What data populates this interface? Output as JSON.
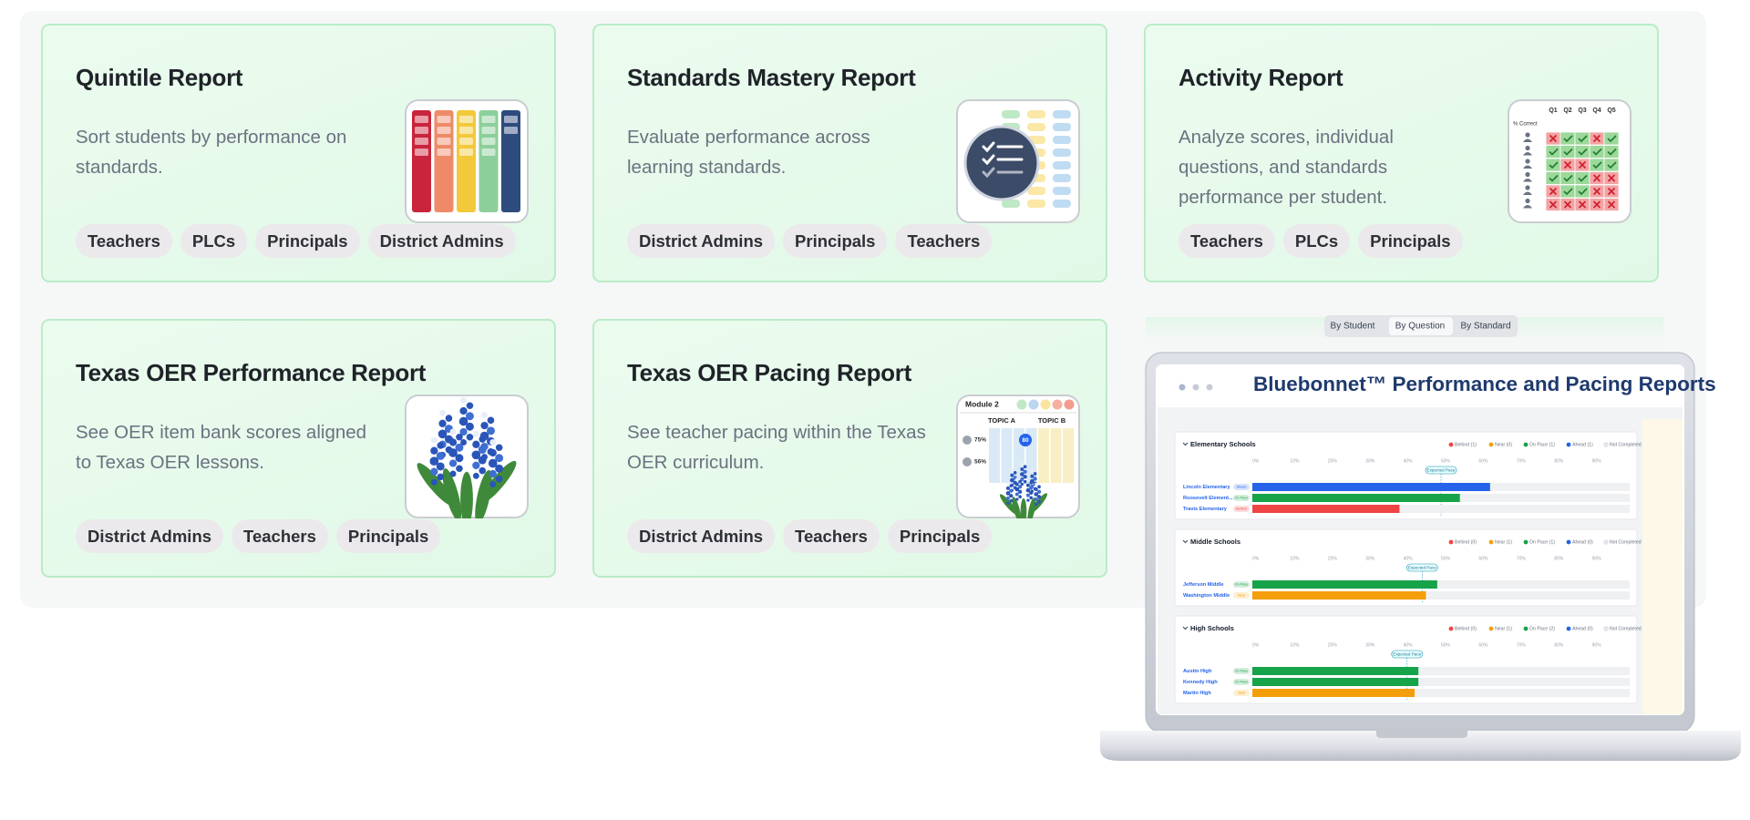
{
  "cards": [
    {
      "title": "Quintile Report",
      "description": "Sort students by performance on standards.",
      "tags": [
        "Teachers",
        "PLCs",
        "Principals",
        "District Admins"
      ]
    },
    {
      "title": "Standards Mastery Report",
      "description": "Evaluate performance across learning standards.",
      "tags": [
        "District Admins",
        "Principals",
        "Teachers"
      ]
    },
    {
      "title": "Activity Report",
      "description": "Analyze scores, individual questions, and standards performance per student.",
      "tags": [
        "Teachers",
        "PLCs",
        "Principals"
      ],
      "art": {
        "row_label": "% Correct",
        "columns": [
          "Q1",
          "Q2",
          "Q3",
          "Q4",
          "Q5"
        ]
      }
    },
    {
      "title": "Texas OER Performance Report",
      "description": "See OER item bank scores aligned to Texas OER lessons.",
      "tags": [
        "District Admins",
        "Teachers",
        "Principals"
      ]
    },
    {
      "title": "Texas OER Pacing Report",
      "description": "See teacher pacing within the Texas OER curriculum.",
      "tags": [
        "District Admins",
        "Teachers",
        "Principals"
      ],
      "art": {
        "module": "Module 2",
        "topics": [
          "TOPIC A",
          "TOPIC B"
        ],
        "scores": [
          "75%",
          "56%"
        ],
        "marker": "80"
      }
    }
  ],
  "preview": {
    "tabs": [
      "By Student",
      "By Question",
      "By Standard"
    ],
    "title": "Bluebonnet™ Performance and Pacing Reports",
    "sections": [
      {
        "name": "Elementary Schools",
        "legend": [
          {
            "label": "Behind (1)",
            "color": "#ef4444"
          },
          {
            "label": "Near (0)",
            "color": "#f59e0b"
          },
          {
            "label": "On Pace (1)",
            "color": "#16a34a"
          },
          {
            "label": "Ahead (1)",
            "color": "#2563eb"
          },
          {
            "label": "Not Completed",
            "color": "#e5e7eb"
          }
        ],
        "xlim": [
          0,
          100
        ],
        "ticks": [
          {
            "value": 0,
            "label": "0%"
          },
          {
            "value": 10,
            "label": "10%"
          },
          {
            "value": 20,
            "label": "20%"
          },
          {
            "value": 30,
            "label": "30%"
          },
          {
            "value": 40,
            "label": "40%"
          },
          {
            "value": 50,
            "label": "50%"
          },
          {
            "value": 60,
            "label": "60%"
          },
          {
            "value": 70,
            "label": "70%"
          },
          {
            "value": 80,
            "label": "80%"
          },
          {
            "value": 90,
            "label": "90%"
          }
        ],
        "expected_label": "Expected Pace",
        "expected": 50,
        "schools": [
          {
            "name": "Lincoln Elementary",
            "status": "Ahead",
            "color": "#2563eb",
            "progress": 63
          },
          {
            "name": "Roosevelt Element...",
            "status": "On Pace",
            "color": "#16a34a",
            "progress": 55
          },
          {
            "name": "Travis Elementary",
            "status": "Behind",
            "color": "#ef4444",
            "progress": 39
          }
        ]
      },
      {
        "name": "Middle Schools",
        "legend": [
          {
            "label": "Behind (0)",
            "color": "#ef4444"
          },
          {
            "label": "Near (1)",
            "color": "#f59e0b"
          },
          {
            "label": "On Pace (1)",
            "color": "#16a34a"
          },
          {
            "label": "Ahead (0)",
            "color": "#2563eb"
          },
          {
            "label": "Not Completed",
            "color": "#e5e7eb"
          }
        ],
        "xlim": [
          0,
          100
        ],
        "ticks": [
          {
            "value": 0,
            "label": "0%"
          },
          {
            "value": 10,
            "label": "10%"
          },
          {
            "value": 20,
            "label": "20%"
          },
          {
            "value": 30,
            "label": "30%"
          },
          {
            "value": 40,
            "label": "40%"
          },
          {
            "value": 50,
            "label": "50%"
          },
          {
            "value": 60,
            "label": "60%"
          },
          {
            "value": 70,
            "label": "70%"
          },
          {
            "value": 80,
            "label": "80%"
          },
          {
            "value": 90,
            "label": "90%"
          }
        ],
        "expected_label": "Expected Pace",
        "expected": 45,
        "schools": [
          {
            "name": "Jefferson Middle",
            "status": "On Pace",
            "color": "#16a34a",
            "progress": 49
          },
          {
            "name": "Washington Middle",
            "status": "Near",
            "color": "#f59e0b",
            "progress": 46
          }
        ]
      },
      {
        "name": "High Schools",
        "legend": [
          {
            "label": "Behind (0)",
            "color": "#ef4444"
          },
          {
            "label": "Near (1)",
            "color": "#f59e0b"
          },
          {
            "label": "On Pace (2)",
            "color": "#16a34a"
          },
          {
            "label": "Ahead (0)",
            "color": "#2563eb"
          },
          {
            "label": "Not Completed",
            "color": "#e5e7eb"
          }
        ],
        "xlim": [
          0,
          100
        ],
        "ticks": [
          {
            "value": 0,
            "label": "0%"
          },
          {
            "value": 10,
            "label": "10%"
          },
          {
            "value": 20,
            "label": "20%"
          },
          {
            "value": 30,
            "label": "30%"
          },
          {
            "value": 40,
            "label": "40%"
          },
          {
            "value": 50,
            "label": "50%"
          },
          {
            "value": 60,
            "label": "60%"
          },
          {
            "value": 70,
            "label": "70%"
          },
          {
            "value": 80,
            "label": "80%"
          },
          {
            "value": 90,
            "label": "90%"
          }
        ],
        "expected_label": "Expected Pace",
        "expected": 41,
        "schools": [
          {
            "name": "Austin High",
            "status": "On Pace",
            "color": "#16a34a",
            "progress": 44
          },
          {
            "name": "Kennedy High",
            "status": "On Pace",
            "color": "#16a34a",
            "progress": 44
          },
          {
            "name": "Martin High",
            "status": "Near",
            "color": "#f59e0b",
            "progress": 43
          }
        ]
      }
    ]
  }
}
